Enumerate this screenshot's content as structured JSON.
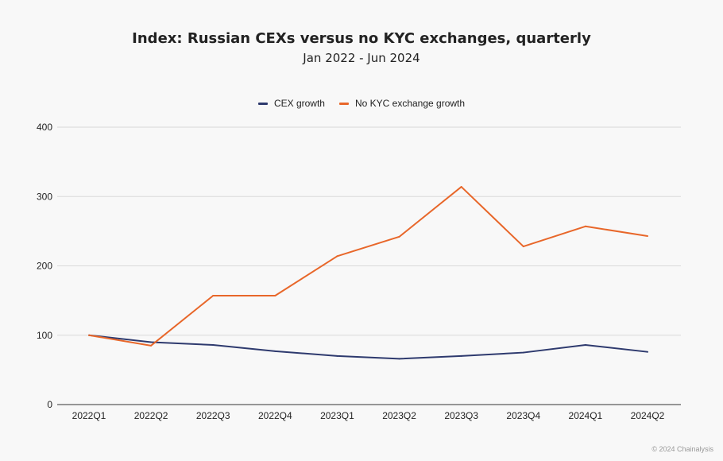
{
  "chart_data": {
    "type": "line",
    "title": "Index: Russian CEXs versus no KYC exchanges, quarterly",
    "subtitle": "Jan 2022 - Jun 2024",
    "categories": [
      "2022Q1",
      "2022Q2",
      "2022Q3",
      "2022Q4",
      "2023Q1",
      "2023Q2",
      "2023Q3",
      "2023Q4",
      "2024Q1",
      "2024Q2"
    ],
    "series": [
      {
        "name": "CEX growth",
        "color": "#2e3a6e",
        "values": [
          100,
          90,
          86,
          77,
          70,
          66,
          70,
          75,
          86,
          76
        ]
      },
      {
        "name": "No KYC exchange growth",
        "color": "#e8672a",
        "values": [
          100,
          85,
          157,
          157,
          214,
          242,
          314,
          228,
          257,
          243
        ]
      }
    ],
    "ylim": [
      0,
      400
    ],
    "yticks": [
      0,
      100,
      200,
      300,
      400
    ],
    "grid": true,
    "legend_position": "top-center",
    "xlabel": "",
    "ylabel": ""
  },
  "credit": "© 2024 Chainalysis"
}
